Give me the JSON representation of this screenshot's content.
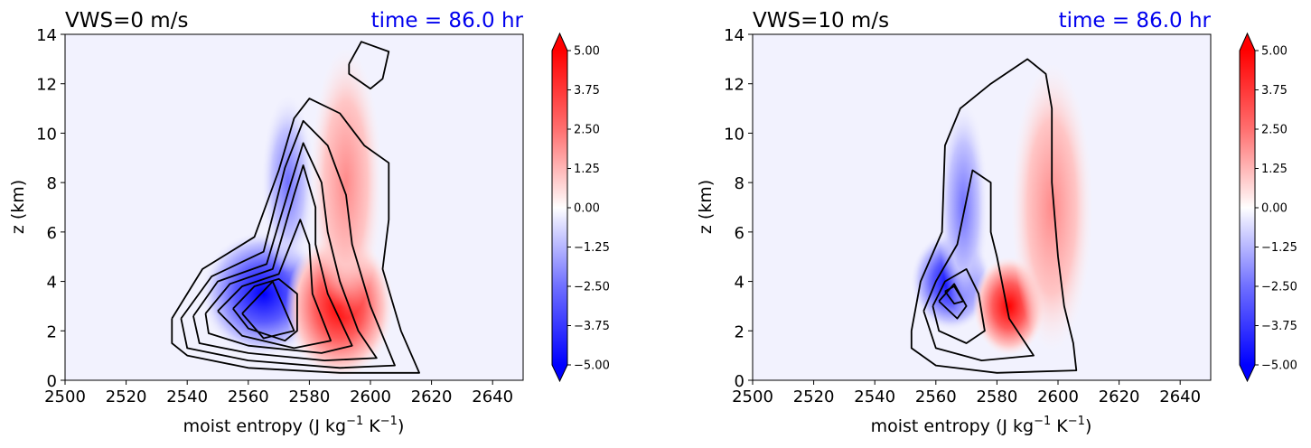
{
  "chart_data": [
    {
      "type": "heatmap",
      "title": "VWS=0 m/s",
      "annotation": "time = 86.0 hr",
      "xlabel": "moist entropy (J kg",
      "xlabel_sup1": "−1",
      "xlabel_mid": " K",
      "xlabel_sup2": "−1",
      "xlabel_end": ")",
      "ylabel": "z (km)",
      "xlim": [
        2500,
        2650
      ],
      "ylim": [
        0,
        14
      ],
      "xticks": [
        "2500",
        "2520",
        "2540",
        "2560",
        "2580",
        "2600",
        "2620",
        "2640"
      ],
      "yticks": [
        "0",
        "2",
        "4",
        "6",
        "8",
        "10",
        "12",
        "14"
      ],
      "colorbar": {
        "range": [
          -5.0,
          5.0
        ],
        "extend": "both",
        "ticks": [
          "5.00",
          "3.75",
          "2.50",
          "1.25",
          "0.00",
          "−1.25",
          "−2.50",
          "−3.75",
          "−5.00"
        ]
      },
      "blue_core": {
        "x": 2565,
        "y": 3.5
      },
      "red_core": {
        "x": 2590,
        "y": 3.0
      },
      "contours": [
        [
          [
            2535,
            2.5
          ],
          [
            2545,
            4.5
          ],
          [
            2562,
            5.8
          ],
          [
            2570,
            8.5
          ],
          [
            2575,
            10.6
          ],
          [
            2580,
            11.4
          ],
          [
            2590,
            10.8
          ],
          [
            2598,
            9.5
          ],
          [
            2606,
            8.8
          ],
          [
            2606,
            6.5
          ],
          [
            2604,
            4.5
          ],
          [
            2610,
            2.0
          ],
          [
            2616,
            0.3
          ],
          [
            2590,
            0.3
          ],
          [
            2560,
            0.5
          ],
          [
            2540,
            1.0
          ],
          [
            2535,
            1.5
          ],
          [
            2535,
            2.5
          ]
        ],
        [
          [
            2538,
            2.5
          ],
          [
            2548,
            4.2
          ],
          [
            2565,
            5.2
          ],
          [
            2572,
            8.6
          ],
          [
            2578,
            10.5
          ],
          [
            2586,
            9.5
          ],
          [
            2592,
            7.5
          ],
          [
            2594,
            5.5
          ],
          [
            2600,
            3.0
          ],
          [
            2608,
            0.6
          ],
          [
            2590,
            0.5
          ],
          [
            2560,
            0.8
          ],
          [
            2540,
            1.3
          ],
          [
            2538,
            2.5
          ]
        ],
        [
          [
            2542,
            2.6
          ],
          [
            2550,
            4.0
          ],
          [
            2566,
            4.7
          ],
          [
            2574,
            8.0
          ],
          [
            2578,
            9.6
          ],
          [
            2584,
            8.0
          ],
          [
            2586,
            6.0
          ],
          [
            2590,
            4.0
          ],
          [
            2596,
            2.0
          ],
          [
            2602,
            0.9
          ],
          [
            2585,
            0.8
          ],
          [
            2560,
            1.1
          ],
          [
            2544,
            1.5
          ],
          [
            2542,
            2.6
          ]
        ],
        [
          [
            2546,
            2.7
          ],
          [
            2554,
            3.9
          ],
          [
            2568,
            4.5
          ],
          [
            2575,
            7.5
          ],
          [
            2578,
            8.7
          ],
          [
            2582,
            7.0
          ],
          [
            2582,
            5.5
          ],
          [
            2586,
            3.5
          ],
          [
            2594,
            1.4
          ],
          [
            2584,
            1.1
          ],
          [
            2560,
            1.4
          ],
          [
            2547,
            1.9
          ],
          [
            2546,
            2.7
          ]
        ],
        [
          [
            2550,
            2.8
          ],
          [
            2558,
            3.8
          ],
          [
            2570,
            4.3
          ],
          [
            2577,
            6.5
          ],
          [
            2580,
            5.5
          ],
          [
            2581,
            3.5
          ],
          [
            2587,
            1.6
          ],
          [
            2575,
            1.3
          ],
          [
            2558,
            1.8
          ],
          [
            2550,
            2.8
          ]
        ],
        [
          [
            2555,
            2.9
          ],
          [
            2562,
            3.8
          ],
          [
            2570,
            4.1
          ],
          [
            2576,
            3.5
          ],
          [
            2576,
            2.0
          ],
          [
            2572,
            1.6
          ],
          [
            2560,
            2.1
          ],
          [
            2555,
            2.9
          ]
        ],
        [
          [
            2558,
            2.7
          ],
          [
            2568,
            4.0
          ],
          [
            2575,
            2.0
          ],
          [
            2565,
            1.7
          ],
          [
            2558,
            2.7
          ]
        ],
        [
          [
            2593,
            12.8
          ],
          [
            2597,
            13.7
          ],
          [
            2606,
            13.3
          ],
          [
            2604,
            12.2
          ],
          [
            2600,
            11.8
          ],
          [
            2593,
            12.4
          ],
          [
            2593,
            12.8
          ]
        ]
      ]
    },
    {
      "type": "heatmap",
      "title": "VWS=10 m/s",
      "annotation": "time = 86.0 hr",
      "xlabel": "moist entropy (J kg",
      "xlabel_sup1": "−1",
      "xlabel_mid": " K",
      "xlabel_sup2": "−1",
      "xlabel_end": ")",
      "ylabel": "z (km)",
      "xlim": [
        2500,
        2650
      ],
      "ylim": [
        0,
        14
      ],
      "xticks": [
        "2500",
        "2520",
        "2540",
        "2560",
        "2580",
        "2600",
        "2620",
        "2640"
      ],
      "yticks": [
        "0",
        "2",
        "4",
        "6",
        "8",
        "10",
        "12",
        "14"
      ],
      "colorbar": {
        "range": [
          -5.0,
          5.0
        ],
        "extend": "both",
        "ticks": [
          "5.00",
          "3.75",
          "2.50",
          "1.25",
          "0.00",
          "−1.25",
          "−2.50",
          "−3.75",
          "−5.00"
        ]
      },
      "blue_core": {
        "x": 2565,
        "y": 4.0
      },
      "red_core": {
        "x": 2584,
        "y": 3.0
      },
      "contours": [
        [
          [
            2552,
            2.0
          ],
          [
            2555,
            4.0
          ],
          [
            2562,
            6.0
          ],
          [
            2563,
            9.5
          ],
          [
            2568,
            11.0
          ],
          [
            2578,
            12.0
          ],
          [
            2590,
            13.0
          ],
          [
            2596,
            12.4
          ],
          [
            2598,
            11.0
          ],
          [
            2598,
            8.0
          ],
          [
            2600,
            5.0
          ],
          [
            2602,
            3.0
          ],
          [
            2605,
            1.5
          ],
          [
            2606,
            0.4
          ],
          [
            2580,
            0.3
          ],
          [
            2560,
            0.6
          ],
          [
            2552,
            1.3
          ],
          [
            2552,
            2.0
          ]
        ],
        [
          [
            2556,
            2.8
          ],
          [
            2560,
            4.0
          ],
          [
            2567,
            5.5
          ],
          [
            2572,
            8.5
          ],
          [
            2578,
            8.0
          ],
          [
            2578,
            6.0
          ],
          [
            2580,
            5.0
          ],
          [
            2584,
            2.5
          ],
          [
            2592,
            1.0
          ],
          [
            2575,
            0.8
          ],
          [
            2560,
            1.3
          ],
          [
            2556,
            2.8
          ]
        ],
        [
          [
            2559,
            3.0
          ],
          [
            2563,
            4.0
          ],
          [
            2570,
            4.5
          ],
          [
            2574,
            3.5
          ],
          [
            2576,
            2.0
          ],
          [
            2570,
            1.5
          ],
          [
            2561,
            2.0
          ],
          [
            2559,
            3.0
          ]
        ],
        [
          [
            2561,
            3.2
          ],
          [
            2566,
            3.9
          ],
          [
            2570,
            3.0
          ],
          [
            2567,
            2.5
          ],
          [
            2561,
            3.2
          ]
        ],
        [
          [
            2563,
            3.6
          ],
          [
            2566,
            3.8
          ],
          [
            2569,
            3.2
          ],
          [
            2566,
            3.1
          ],
          [
            2563,
            3.6
          ]
        ]
      ]
    }
  ]
}
